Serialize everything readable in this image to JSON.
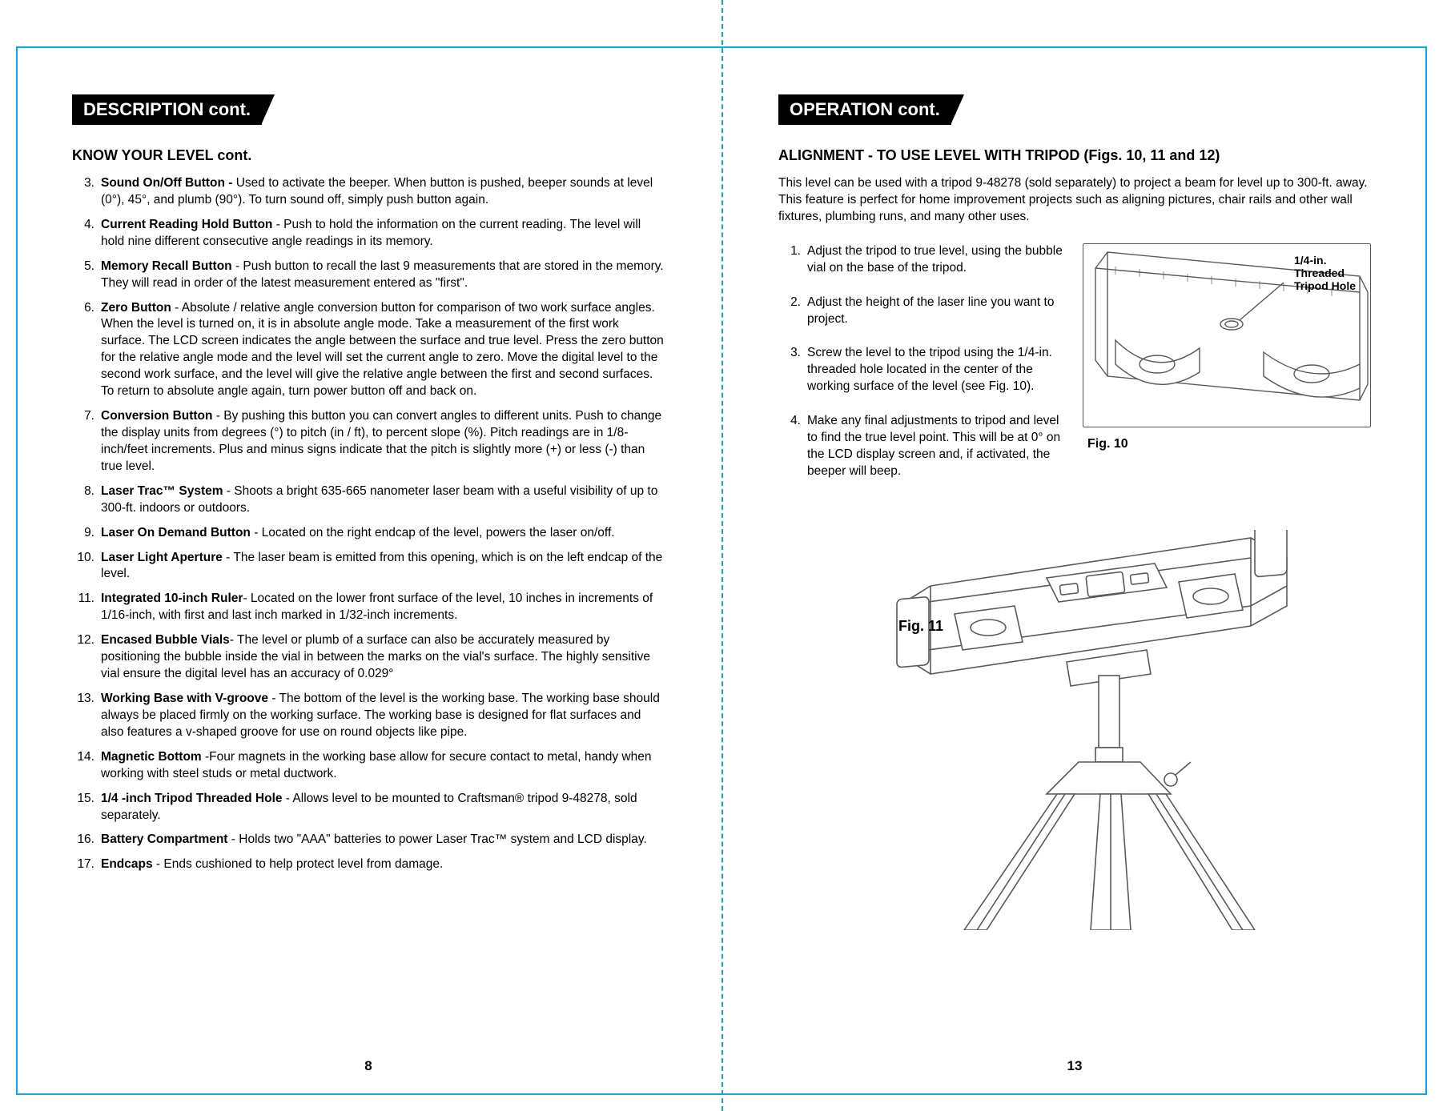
{
  "colors": {
    "accent": "#00aeef",
    "text": "#000000",
    "header_bg": "#000000",
    "header_fg": "#ffffff",
    "line_art": "#58595b"
  },
  "left_page": {
    "header": "DESCRIPTION cont.",
    "subheading": "KNOW YOUR LEVEL cont.",
    "items": [
      {
        "n": "3.",
        "term": "Sound On/Off Button - ",
        "body": "Used to activate the beeper. When button is pushed, beeper sounds at level (0°), 45°, and plumb (90°). To turn sound off, simply push button again."
      },
      {
        "n": "4.",
        "term": "Current Reading Hold Button",
        "body": " - Push to hold the information on the current reading. The level will hold nine different consecutive angle readings in its memory."
      },
      {
        "n": "5.",
        "term": "Memory Recall Button",
        "body": " - Push button to recall the last 9 measurements that are stored in the memory. They will read in order of the latest measurement entered as \"first\"."
      },
      {
        "n": "6.",
        "term": "Zero Button",
        "body": " - Absolute / relative angle conversion button for comparison of two work surface angles. When the level is turned on, it is in absolute angle mode. Take a measurement of the first work surface. The LCD screen indicates the angle between the surface and true level. Press the zero button for the relative angle mode and the level will set the current angle to zero. Move the digital level to the second work surface, and the level will give the relative angle between the first and second surfaces. To return to absolute angle again, turn power button off and back on."
      },
      {
        "n": "7.",
        "term": "Conversion Button",
        "body": " - By pushing this button you can convert angles to different units. Push to change the display units from degrees (°) to pitch (in / ft), to percent slope (%). Pitch readings are in 1/8-inch/feet increments. Plus and minus signs indicate that the pitch is slightly more (+) or less (-) than true level."
      },
      {
        "n": "8.",
        "term": "Laser Trac™  System",
        "body": " - Shoots a bright 635-665 nanometer laser beam with a useful visibility of up to 300-ft. indoors or outdoors."
      },
      {
        "n": "9.",
        "term": "Laser On Demand Button",
        "body": " - Located on the right endcap of the level, powers the laser on/off."
      },
      {
        "n": "10.",
        "term": "Laser Light Aperture",
        "body": " - The laser beam is emitted from this opening, which is on the left endcap of the level."
      },
      {
        "n": "11.",
        "term": "Integrated 10-inch Ruler",
        "body": "- Located on the lower front surface of the level, 10 inches in increments of 1/16-inch, with first and last inch marked in 1/32-inch increments."
      },
      {
        "n": "12.",
        "term": "Encased Bubble Vials",
        "body": "- The level or plumb of a surface can also be accurately measured by positioning the bubble inside the vial in between the marks on the vial's surface. The highly sensitive vial ensure the digital level has an accuracy of 0.029°"
      },
      {
        "n": "13.",
        "term": "Working Base with V-groove",
        "body": " - The bottom of the level is the working base. The working base should always be placed firmly on the working surface. The working base is designed for flat surfaces and also features a v-shaped groove for use on round objects like pipe."
      },
      {
        "n": "14.",
        "term": "Magnetic Bottom",
        "body": " -Four magnets in the working base allow for secure contact to metal, handy when working with steel studs or metal ductwork."
      },
      {
        "n": "15.",
        "term": "1/4 -inch Tripod Threaded Hole",
        "body": " - Allows level to be mounted to Craftsman® tripod 9-48278, sold separately."
      },
      {
        "n": "16.",
        "term": "Battery Compartment",
        "body": " - Holds two \"AAA\" batteries to power Laser Trac™ system and LCD display."
      },
      {
        "n": "17.",
        "term": "Endcaps",
        "body": " - Ends cushioned to help protect level from damage."
      }
    ],
    "page_number": "8"
  },
  "right_page": {
    "header": "OPERATION cont.",
    "subheading": "ALIGNMENT - TO USE LEVEL WITH TRIPOD (Figs. 10, 11 and 12)",
    "intro": "This level can be used with a tripod 9-48278 (sold separately) to project a beam for level up to 300-ft. away. This feature is perfect for home improvement projects such as aligning pictures, chair rails and other wall fixtures, plumbing runs, and many other uses.",
    "steps": [
      {
        "n": "1.",
        "body": "Adjust the tripod to true level, using the bubble vial on the base of the tripod."
      },
      {
        "n": "2.",
        "body": "Adjust the height of the laser line you want to project."
      },
      {
        "n": "3.",
        "body": "Screw the level to the tripod using the 1/4-in. threaded hole located in the center of the working surface of the level (see Fig. 10)."
      },
      {
        "n": "4.",
        "body": "Make any final adjustments to tripod and level to find the true level point. This will be at 0° on the LCD display screen and, if activated, the beeper will beep."
      }
    ],
    "fig10_caption": "Fig. 10",
    "fig10_annot_line1": "1/4-in.",
    "fig10_annot_line2": "Threaded",
    "fig10_annot_line3": "Tripod Hole",
    "fig11_caption": "Fig. 11",
    "page_number": "13"
  }
}
